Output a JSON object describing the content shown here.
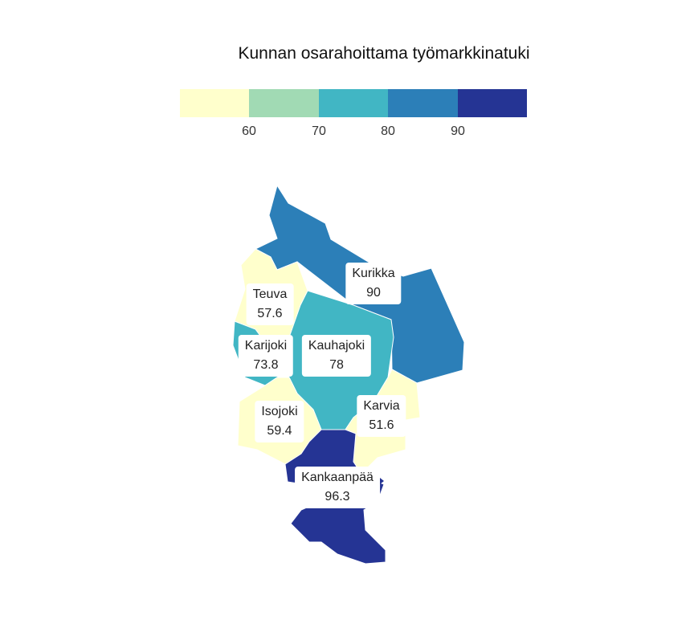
{
  "title": "Kunnan osarahoittama työmarkkinatuki",
  "legend": {
    "colors": [
      "#ffffcc",
      "#a1dab4",
      "#41b6c4",
      "#2c7fb8",
      "#253494"
    ],
    "ticks": [
      "60",
      "70",
      "80",
      "90"
    ]
  },
  "regions": [
    {
      "name": "Kurikka",
      "value": "90",
      "color": "#2c7fb8"
    },
    {
      "name": "Teuva",
      "value": "57.6",
      "color": "#ffffcc"
    },
    {
      "name": "Karijoki",
      "value": "73.8",
      "color": "#41b6c4"
    },
    {
      "name": "Kauhajoki",
      "value": "78",
      "color": "#41b6c4"
    },
    {
      "name": "Isojoki",
      "value": "59.4",
      "color": "#ffffcc"
    },
    {
      "name": "Karvia",
      "value": "51.6",
      "color": "#ffffcc"
    },
    {
      "name": "Kankaanpää",
      "value": "96.3",
      "color": "#253494"
    }
  ]
}
